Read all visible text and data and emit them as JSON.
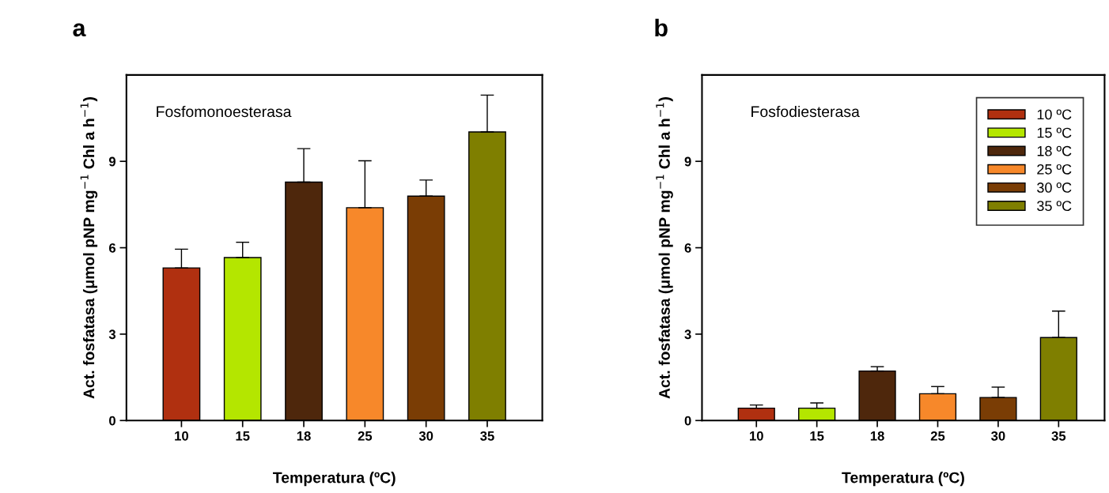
{
  "chart_data": [
    {
      "type": "bar",
      "title": "a",
      "xlabel": "Temperatura (ºC)",
      "ylabel": "Act. fosfatasa (μmol pNP mg$^{−1}$ Chl a h$^{−1}$)",
      "categories": [
        "10",
        "15",
        "18",
        "25",
        "30",
        "35"
      ],
      "values": [
        5.3,
        5.66,
        8.28,
        7.39,
        7.79,
        10.02
      ],
      "errors": [
        0.65,
        0.53,
        1.16,
        1.63,
        0.56,
        1.28
      ],
      "colors": [
        "#b03010",
        "#b4e600",
        "#4e270c",
        "#f7882a",
        "#7a3d05",
        "#7f7f00"
      ],
      "ylim": [
        0,
        12
      ],
      "yticks": [
        0,
        3,
        6,
        9
      ],
      "grid": false,
      "legend": false,
      "annotations": [
        "Fosfomonoesterasa"
      ]
    },
    {
      "type": "bar",
      "title": "b",
      "xlabel": "Temperatura (ºC)",
      "ylabel": "Act. fosfatasa (μmol pNP mg$^{−1}$ Chl a h$^{−1}$)",
      "categories": [
        "10",
        "15",
        "18",
        "25",
        "30",
        "35"
      ],
      "series": [
        {
          "name": "10 ºC",
          "color": "#b03010",
          "values": [
            0.43,
            null,
            null,
            null,
            null,
            null
          ],
          "errors": [
            0.11,
            null,
            null,
            null,
            null,
            null
          ]
        },
        {
          "name": "15 ºC",
          "color": "#b4e600",
          "values": [
            null,
            0.43,
            null,
            null,
            null,
            null
          ],
          "errors": [
            null,
            0.18,
            null,
            null,
            null,
            null
          ]
        },
        {
          "name": "18 ºC",
          "color": "#4e270c",
          "values": [
            null,
            null,
            1.72,
            null,
            null,
            null
          ],
          "errors": [
            null,
            null,
            0.15,
            null,
            null,
            null
          ]
        },
        {
          "name": "25 ºC",
          "color": "#f7882a",
          "values": [
            null,
            null,
            null,
            0.93,
            null,
            null
          ],
          "errors": [
            null,
            null,
            null,
            0.25,
            null,
            null
          ]
        },
        {
          "name": "30 ºC",
          "color": "#7a3d05",
          "values": [
            null,
            null,
            null,
            null,
            0.8,
            null
          ],
          "errors": [
            null,
            null,
            null,
            null,
            0.36,
            null
          ]
        },
        {
          "name": "35 ºC",
          "color": "#7f7f00",
          "values": [
            null,
            null,
            null,
            null,
            null,
            2.88
          ],
          "errors": [
            null,
            null,
            null,
            null,
            null,
            0.92
          ]
        }
      ],
      "ylim": [
        0,
        12
      ],
      "yticks": [
        0,
        3,
        6,
        9
      ],
      "grid": false,
      "legend": "top right",
      "annotations": [
        "Fosfodiesterasa"
      ]
    }
  ]
}
